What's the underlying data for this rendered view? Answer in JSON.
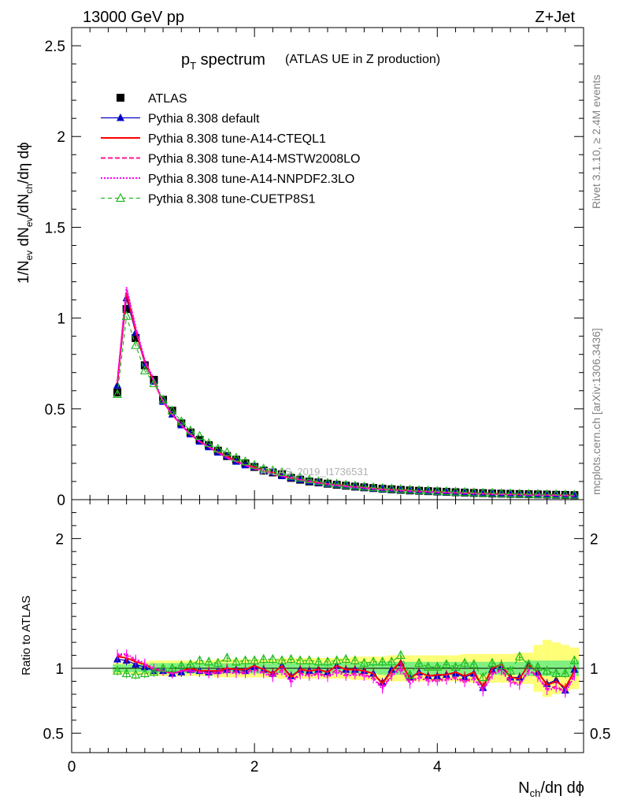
{
  "header": {
    "energy_label": "13000 GeV pp",
    "process_label": "Z+Jet"
  },
  "side_labels": {
    "rivet": "Rivet 3.1.10, ≥ 2.4M events",
    "mcplots": "mcplots.cern.ch [arXiv:1306.3436]"
  },
  "watermark": "ATLAS_2019_I1736531",
  "colors": {
    "atlas": "#000000",
    "default": "#0000cc",
    "cteql1": "#ff0000",
    "mstw": "#ff1493",
    "nnpdf": "#ff00ff",
    "cuetp8s1": "#22bb22",
    "band_inner": "#7ff07f",
    "band_outer": "#ffff77"
  },
  "chart_data": [
    {
      "type": "scatter",
      "title": "p_T spectrum",
      "subtitle": "(ATLAS UE in Z production)",
      "xlabel": "N_ch/dη dϕ",
      "ylabel": "1/N_ev dN_ev/dN_ch/dη dϕ",
      "xlim": [
        0,
        5.6
      ],
      "ylim": [
        0,
        2.6
      ],
      "yticks": [
        "0",
        "0.5",
        "1",
        "1.5",
        "2",
        "2.5"
      ],
      "legend_position": "top-left",
      "x": [
        0.5,
        0.6,
        0.7,
        0.8,
        0.9,
        1.0,
        1.1,
        1.2,
        1.3,
        1.4,
        1.5,
        1.6,
        1.7,
        1.8,
        1.9,
        2.0,
        2.1,
        2.2,
        2.3,
        2.4,
        2.5,
        2.6,
        2.7,
        2.8,
        2.9,
        3.0,
        3.1,
        3.2,
        3.3,
        3.4,
        3.5,
        3.6,
        3.7,
        3.8,
        3.9,
        4.0,
        4.1,
        4.2,
        4.3,
        4.4,
        4.5,
        4.6,
        4.7,
        4.8,
        4.9,
        5.0,
        5.1,
        5.2,
        5.3,
        5.4,
        5.5
      ],
      "series": [
        {
          "name": "ATLAS",
          "style": "black-square",
          "values": [
            0.59,
            1.05,
            0.89,
            0.74,
            0.66,
            0.55,
            0.49,
            0.42,
            0.37,
            0.33,
            0.3,
            0.27,
            0.24,
            0.22,
            0.2,
            0.18,
            0.16,
            0.15,
            0.14,
            0.12,
            0.11,
            0.1,
            0.095,
            0.088,
            0.082,
            0.077,
            0.072,
            0.068,
            0.064,
            0.06,
            0.057,
            0.054,
            0.051,
            0.049,
            0.047,
            0.045,
            0.043,
            0.041,
            0.039,
            0.037,
            0.036,
            0.034,
            0.033,
            0.032,
            0.031,
            0.03,
            0.029,
            0.028,
            0.027,
            0.026,
            0.025
          ]
        },
        {
          "name": "Pythia 8.308 default",
          "style": "blue-triangle",
          "values": [
            0.63,
            1.11,
            0.92,
            0.75,
            0.65,
            0.54,
            0.47,
            0.41,
            0.36,
            0.32,
            0.29,
            0.26,
            0.24,
            0.21,
            0.19,
            0.18,
            0.16,
            0.15,
            0.13,
            0.12,
            0.11,
            0.1,
            0.094,
            0.087,
            0.082,
            0.076,
            0.071,
            0.067,
            0.062,
            0.058,
            0.056,
            0.053,
            0.05,
            0.047,
            0.045,
            0.043,
            0.041,
            0.039,
            0.037,
            0.035,
            0.034,
            0.032,
            0.031,
            0.03,
            0.029,
            0.028,
            0.027,
            0.026,
            0.025,
            0.024,
            0.023
          ]
        },
        {
          "name": "Pythia 8.308 tune-A14-CTEQL1",
          "style": "red-solid",
          "values": [
            0.64,
            1.14,
            0.93,
            0.76,
            0.65,
            0.54,
            0.47,
            0.41,
            0.36,
            0.32,
            0.29,
            0.26,
            0.24,
            0.21,
            0.19,
            0.18,
            0.16,
            0.15,
            0.13,
            0.12,
            0.11,
            0.1,
            0.094,
            0.087,
            0.082,
            0.076,
            0.071,
            0.067,
            0.062,
            0.058,
            0.056,
            0.053,
            0.05,
            0.047,
            0.045,
            0.043,
            0.041,
            0.039,
            0.037,
            0.035,
            0.034,
            0.032,
            0.031,
            0.03,
            0.029,
            0.028,
            0.027,
            0.026,
            0.025,
            0.024,
            0.023
          ]
        },
        {
          "name": "Pythia 8.308 tune-A14-MSTW2008LO",
          "style": "pink-dashed",
          "values": [
            0.65,
            1.16,
            0.94,
            0.76,
            0.65,
            0.54,
            0.47,
            0.41,
            0.36,
            0.32,
            0.29,
            0.26,
            0.23,
            0.21,
            0.19,
            0.17,
            0.16,
            0.14,
            0.13,
            0.12,
            0.11,
            0.1,
            0.092,
            0.085,
            0.08,
            0.074,
            0.069,
            0.065,
            0.06,
            0.056,
            0.054,
            0.051,
            0.048,
            0.046,
            0.044,
            0.042,
            0.04,
            0.038,
            0.036,
            0.034,
            0.033,
            0.031,
            0.03,
            0.029,
            0.028,
            0.027,
            0.026,
            0.025,
            0.024,
            0.023,
            0.022
          ]
        },
        {
          "name": "Pythia 8.308 tune-A14-NNPDF2.3LO",
          "style": "magenta-dotted",
          "values": [
            0.65,
            1.17,
            0.95,
            0.77,
            0.66,
            0.54,
            0.47,
            0.41,
            0.36,
            0.32,
            0.29,
            0.26,
            0.23,
            0.21,
            0.19,
            0.17,
            0.16,
            0.14,
            0.13,
            0.12,
            0.11,
            0.1,
            0.091,
            0.084,
            0.079,
            0.073,
            0.068,
            0.064,
            0.059,
            0.055,
            0.053,
            0.05,
            0.047,
            0.045,
            0.043,
            0.041,
            0.039,
            0.037,
            0.035,
            0.033,
            0.032,
            0.03,
            0.029,
            0.028,
            0.027,
            0.026,
            0.025,
            0.024,
            0.023,
            0.022,
            0.021
          ]
        },
        {
          "name": "Pythia 8.308 tune-CUETP8S1",
          "style": "green-open-triangle",
          "values": [
            0.58,
            1.01,
            0.85,
            0.71,
            0.64,
            0.55,
            0.49,
            0.43,
            0.38,
            0.35,
            0.31,
            0.28,
            0.26,
            0.23,
            0.21,
            0.19,
            0.17,
            0.16,
            0.15,
            0.13,
            0.12,
            0.11,
            0.1,
            0.092,
            0.087,
            0.081,
            0.076,
            0.071,
            0.067,
            0.063,
            0.06,
            0.057,
            0.054,
            0.051,
            0.049,
            0.047,
            0.045,
            0.043,
            0.041,
            0.039,
            0.037,
            0.036,
            0.034,
            0.033,
            0.032,
            0.031,
            0.03,
            0.029,
            0.028,
            0.027,
            0.026
          ]
        }
      ]
    },
    {
      "type": "line",
      "ylabel": "Ratio to ATLAS",
      "xlabel": "N_ch/dη dϕ",
      "xlim": [
        0,
        5.6
      ],
      "ylim": [
        0.35,
        2.3
      ],
      "yticks": [
        "0.5",
        "1",
        "2"
      ],
      "xticks": [
        "0",
        "2",
        "4"
      ],
      "x": [
        0.5,
        0.6,
        0.7,
        0.8,
        0.9,
        1.0,
        1.1,
        1.2,
        1.3,
        1.4,
        1.5,
        1.6,
        1.7,
        1.8,
        1.9,
        2.0,
        2.1,
        2.2,
        2.3,
        2.4,
        2.5,
        2.6,
        2.7,
        2.8,
        2.9,
        3.0,
        3.1,
        3.2,
        3.3,
        3.4,
        3.5,
        3.6,
        3.7,
        3.8,
        3.9,
        4.0,
        4.1,
        4.2,
        4.3,
        4.4,
        4.5,
        4.6,
        4.7,
        4.8,
        4.9,
        5.0,
        5.1,
        5.2,
        5.3,
        5.4,
        5.5
      ],
      "band_inner_halfwidth": [
        0.03,
        0.03,
        0.03,
        0.03,
        0.04,
        0.04,
        0.04,
        0.04,
        0.04,
        0.04,
        0.04,
        0.04,
        0.04,
        0.04,
        0.04,
        0.04,
        0.04,
        0.04,
        0.04,
        0.04,
        0.04,
        0.04,
        0.04,
        0.04,
        0.04,
        0.04,
        0.04,
        0.04,
        0.04,
        0.05,
        0.05,
        0.05,
        0.05,
        0.05,
        0.05,
        0.05,
        0.05,
        0.05,
        0.05,
        0.05,
        0.05,
        0.05,
        0.05,
        0.05,
        0.05,
        0.06,
        0.06,
        0.06,
        0.06,
        0.06,
        0.06
      ],
      "band_outer_halfwidth": [
        0.04,
        0.04,
        0.05,
        0.05,
        0.06,
        0.06,
        0.06,
        0.06,
        0.06,
        0.06,
        0.06,
        0.07,
        0.07,
        0.07,
        0.07,
        0.07,
        0.07,
        0.07,
        0.08,
        0.08,
        0.08,
        0.08,
        0.08,
        0.08,
        0.08,
        0.08,
        0.09,
        0.09,
        0.09,
        0.09,
        0.1,
        0.1,
        0.1,
        0.1,
        0.1,
        0.1,
        0.1,
        0.1,
        0.11,
        0.11,
        0.11,
        0.11,
        0.11,
        0.11,
        0.12,
        0.12,
        0.18,
        0.22,
        0.2,
        0.18,
        0.16
      ],
      "series": [
        {
          "name": "Pythia 8.308 default",
          "values": [
            1.07,
            1.06,
            1.03,
            1.01,
            0.98,
            0.98,
            0.96,
            0.97,
            0.99,
            0.98,
            0.97,
            0.98,
            0.99,
            0.99,
            0.98,
            1.01,
            0.99,
            0.96,
            1.02,
            0.94,
            0.99,
            0.98,
            0.99,
            0.97,
            1.02,
            0.99,
            0.99,
            0.98,
            0.96,
            0.89,
            0.99,
            1.04,
            0.93,
            0.97,
            0.94,
            0.94,
            0.95,
            0.96,
            0.93,
            0.96,
            0.85,
            0.99,
            1.01,
            0.93,
            0.93,
            1.02,
            0.97,
            0.88,
            0.91,
            0.83,
            0.99
          ]
        },
        {
          "name": "Pythia 8.308 tune-A14-CTEQL1",
          "values": [
            1.09,
            1.08,
            1.05,
            1.03,
            0.99,
            0.98,
            0.96,
            0.98,
            1.0,
            0.98,
            0.98,
            0.98,
            1.0,
            0.99,
            0.99,
            1.02,
            0.99,
            0.96,
            1.02,
            0.93,
            0.99,
            0.98,
            0.99,
            0.97,
            1.02,
            0.99,
            0.99,
            0.98,
            0.96,
            0.88,
            0.98,
            1.05,
            0.92,
            0.97,
            0.94,
            0.95,
            0.95,
            0.97,
            0.94,
            0.97,
            0.86,
            1.0,
            1.03,
            0.93,
            0.92,
            1.03,
            0.97,
            0.87,
            0.9,
            0.85,
            0.98
          ]
        },
        {
          "name": "Pythia 8.308 tune-A14-MSTW2008LO",
          "values": [
            1.1,
            1.1,
            1.06,
            1.03,
            0.99,
            0.98,
            0.96,
            0.98,
            0.98,
            0.97,
            0.96,
            0.97,
            0.98,
            0.97,
            0.97,
            0.99,
            0.97,
            0.94,
            0.99,
            0.9,
            0.96,
            0.95,
            0.96,
            0.94,
            0.99,
            0.95,
            0.96,
            0.95,
            0.93,
            0.85,
            0.95,
            1.01,
            0.89,
            0.94,
            0.91,
            0.91,
            0.92,
            0.93,
            0.9,
            0.93,
            0.83,
            0.96,
            0.99,
            0.9,
            0.88,
            0.99,
            0.94,
            0.84,
            0.86,
            0.82,
            0.95
          ]
        },
        {
          "name": "Pythia 8.308 tune-A14-NNPDF2.3LO",
          "values": [
            1.11,
            1.11,
            1.07,
            1.04,
            1.0,
            0.98,
            0.96,
            0.98,
            0.98,
            0.97,
            0.96,
            0.96,
            0.97,
            0.96,
            0.96,
            0.98,
            0.96,
            0.93,
            0.98,
            0.89,
            0.95,
            0.94,
            0.95,
            0.93,
            0.97,
            0.94,
            0.95,
            0.94,
            0.92,
            0.84,
            0.94,
            0.99,
            0.88,
            0.93,
            0.9,
            0.9,
            0.91,
            0.92,
            0.89,
            0.92,
            0.82,
            0.95,
            0.98,
            0.89,
            0.87,
            0.98,
            0.93,
            0.83,
            0.85,
            0.81,
            0.94
          ]
        },
        {
          "name": "Pythia 8.308 tune-CUETP8S1",
          "values": [
            0.98,
            0.96,
            0.95,
            0.96,
            0.97,
            1.0,
            1.0,
            1.02,
            1.03,
            1.06,
            1.05,
            1.04,
            1.08,
            1.05,
            1.06,
            1.06,
            1.07,
            1.07,
            1.06,
            1.07,
            1.06,
            1.06,
            1.05,
            1.05,
            1.06,
            1.07,
            1.06,
            1.04,
            1.05,
            1.05,
            1.05,
            1.1,
            0.95,
            1.04,
            1.01,
            1.01,
            1.03,
            1.01,
            1.04,
            1.03,
            0.93,
            1.04,
            1.02,
            0.98,
            1.09,
            1.03,
            1.01,
            0.98,
            0.96,
            0.96,
            1.06
          ]
        }
      ]
    }
  ],
  "legend": [
    {
      "label": "ATLAS",
      "key": "atlas"
    },
    {
      "label": "Pythia 8.308 default",
      "key": "default"
    },
    {
      "label": "Pythia 8.308 tune-A14-CTEQL1",
      "key": "cteql1"
    },
    {
      "label": "Pythia 8.308 tune-A14-MSTW2008LO",
      "key": "mstw"
    },
    {
      "label": "Pythia 8.308 tune-A14-NNPDF2.3LO",
      "key": "nnpdf"
    },
    {
      "label": "Pythia 8.308 tune-CUETP8S1",
      "key": "cuetp8s1"
    }
  ]
}
